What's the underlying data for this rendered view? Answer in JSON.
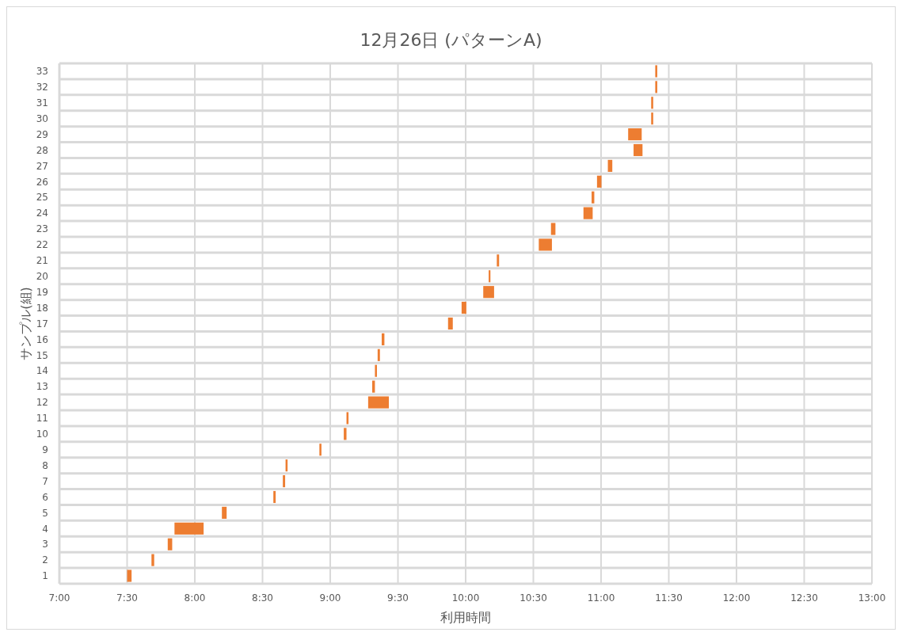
{
  "chart_data": {
    "type": "bar",
    "orientation": "horizontal",
    "title": "12月26日 (パターンA)",
    "xlabel": "利用時間",
    "ylabel": "サンプル(組)",
    "categories": [
      "33",
      "32",
      "31",
      "30",
      "29",
      "28",
      "27",
      "26",
      "25",
      "24",
      "23",
      "22",
      "21",
      "20",
      "19",
      "18",
      "17",
      "16",
      "15",
      "14",
      "13",
      "12",
      "11",
      "10",
      "9",
      "8",
      "7",
      "6",
      "5",
      "4",
      "3",
      "2",
      "1"
    ],
    "base": [
      11.4,
      11.4,
      11.37,
      11.37,
      11.2,
      11.24,
      11.05,
      10.97,
      10.93,
      10.87,
      10.63,
      10.54,
      10.23,
      10.17,
      10.13,
      9.97,
      9.87,
      9.38,
      9.35,
      9.33,
      9.31,
      9.28,
      9.12,
      9.1,
      8.92,
      8.67,
      8.65,
      8.58,
      8.2,
      7.85,
      7.8,
      7.68,
      7.5
    ],
    "values": [
      0.015,
      0.015,
      0.015,
      0.015,
      0.1,
      0.066,
      0.033,
      0.033,
      0.02,
      0.068,
      0.033,
      0.097,
      0.017,
      0.013,
      0.08,
      0.035,
      0.035,
      0.02,
      0.017,
      0.015,
      0.02,
      0.153,
      0.015,
      0.02,
      0.015,
      0.015,
      0.017,
      0.017,
      0.035,
      0.215,
      0.033,
      0.02,
      0.033
    ],
    "color": "#ed7d31",
    "xlim": [
      7,
      13
    ],
    "xticks": [
      {
        "value": 7,
        "label": "7:00"
      },
      {
        "value": 7.5,
        "label": "7:30"
      },
      {
        "value": 8,
        "label": "8:00"
      },
      {
        "value": 8.5,
        "label": "8:30"
      },
      {
        "value": 9,
        "label": "9:00"
      },
      {
        "value": 9.5,
        "label": "9:30"
      },
      {
        "value": 10,
        "label": "10:00"
      },
      {
        "value": 10.5,
        "label": "10:30"
      },
      {
        "value": 11,
        "label": "11:00"
      },
      {
        "value": 11.5,
        "label": "11:30"
      },
      {
        "value": 12,
        "label": "12:00"
      },
      {
        "value": 12.5,
        "label": "12:30"
      },
      {
        "value": 13,
        "label": "13:00"
      }
    ],
    "grid": true
  }
}
